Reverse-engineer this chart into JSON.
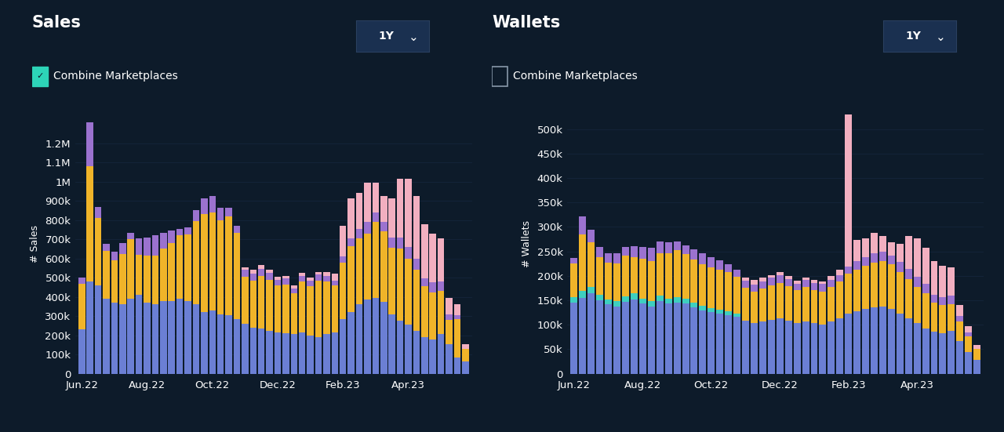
{
  "bg_color": "#0d1b2a",
  "grid_color": "#162840",
  "text_color": "#ffffff",
  "bar_colors": {
    "blue": "#6b7fd4",
    "teal": "#3ecfbf",
    "yellow": "#f0b429",
    "purple": "#9b72cf",
    "pink": "#f2afc0"
  },
  "sales_title": "Sales",
  "wallets_title": "Wallets",
  "sales_ylabel": "# Sales",
  "wallets_ylabel": "# Wallets",
  "combine_label": "Combine Marketplaces",
  "period_label": "1Y",
  "x_labels": [
    "Jun.22",
    "Aug.22",
    "Oct.22",
    "Dec.22",
    "Feb.23",
    "Apr.23"
  ],
  "sales_ylim": [
    0,
    1350000
  ],
  "wallets_ylim": [
    0,
    530000
  ],
  "sales_yticks": [
    0,
    100000,
    200000,
    300000,
    400000,
    500000,
    600000,
    700000,
    800000,
    900000,
    1000000,
    1100000,
    1200000
  ],
  "wallets_yticks": [
    0,
    50000,
    100000,
    150000,
    200000,
    250000,
    300000,
    350000,
    400000,
    450000,
    500000
  ],
  "n_bars": 48,
  "sales_blue": [
    230000,
    480000,
    460000,
    390000,
    370000,
    360000,
    390000,
    410000,
    370000,
    360000,
    380000,
    380000,
    390000,
    380000,
    360000,
    320000,
    330000,
    310000,
    305000,
    285000,
    260000,
    240000,
    235000,
    225000,
    215000,
    210000,
    205000,
    215000,
    200000,
    190000,
    205000,
    215000,
    285000,
    320000,
    360000,
    385000,
    395000,
    375000,
    310000,
    275000,
    255000,
    225000,
    190000,
    180000,
    205000,
    155000,
    85000,
    65000
  ],
  "sales_teal": [
    0,
    0,
    0,
    0,
    0,
    0,
    0,
    0,
    0,
    0,
    0,
    0,
    0,
    0,
    0,
    0,
    0,
    0,
    0,
    0,
    0,
    0,
    0,
    0,
    0,
    0,
    0,
    0,
    0,
    0,
    0,
    0,
    0,
    0,
    0,
    0,
    0,
    0,
    0,
    0,
    0,
    0,
    0,
    0,
    0,
    0,
    0,
    0
  ],
  "sales_yellow": [
    240000,
    600000,
    350000,
    250000,
    220000,
    265000,
    310000,
    210000,
    245000,
    255000,
    270000,
    300000,
    330000,
    345000,
    435000,
    510000,
    510000,
    490000,
    515000,
    450000,
    245000,
    245000,
    275000,
    265000,
    245000,
    255000,
    215000,
    265000,
    255000,
    295000,
    275000,
    245000,
    295000,
    345000,
    345000,
    345000,
    395000,
    365000,
    345000,
    375000,
    345000,
    315000,
    265000,
    245000,
    225000,
    125000,
    200000,
    65000
  ],
  "sales_purple": [
    30000,
    230000,
    60000,
    35000,
    45000,
    55000,
    35000,
    85000,
    95000,
    105000,
    85000,
    65000,
    35000,
    35000,
    55000,
    85000,
    85000,
    65000,
    45000,
    35000,
    35000,
    35000,
    35000,
    35000,
    30000,
    30000,
    25000,
    30000,
    30000,
    30000,
    30000,
    25000,
    30000,
    40000,
    50000,
    60000,
    50000,
    50000,
    55000,
    60000,
    60000,
    60000,
    40000,
    50000,
    50000,
    30000,
    20000,
    0
  ],
  "sales_pink": [
    0,
    0,
    0,
    0,
    0,
    0,
    0,
    0,
    0,
    0,
    0,
    0,
    0,
    0,
    0,
    0,
    0,
    0,
    0,
    0,
    15000,
    20000,
    20000,
    15000,
    15000,
    15000,
    15000,
    15000,
    15000,
    15000,
    20000,
    35000,
    160000,
    210000,
    185000,
    205000,
    155000,
    135000,
    205000,
    305000,
    355000,
    325000,
    285000,
    255000,
    225000,
    85000,
    55000,
    25000
  ],
  "wallets_blue": [
    145000,
    155000,
    165000,
    150000,
    142000,
    138000,
    147000,
    152000,
    143000,
    138000,
    148000,
    143000,
    146000,
    143000,
    136000,
    130000,
    126000,
    123000,
    120000,
    116000,
    108000,
    103000,
    106000,
    110000,
    113000,
    108000,
    103000,
    106000,
    103000,
    100000,
    106000,
    113000,
    123000,
    128000,
    133000,
    136000,
    138000,
    133000,
    123000,
    113000,
    103000,
    93000,
    86000,
    83000,
    88000,
    66000,
    44000,
    28000
  ],
  "wallets_teal": [
    12000,
    14000,
    12000,
    11000,
    10000,
    10000,
    11000,
    12000,
    11000,
    10000,
    11000,
    10000,
    11000,
    10000,
    10000,
    9000,
    8000,
    8000,
    8000,
    7000,
    0,
    0,
    0,
    0,
    0,
    0,
    0,
    0,
    0,
    0,
    0,
    0,
    0,
    0,
    0,
    0,
    0,
    0,
    0,
    0,
    0,
    0,
    0,
    0,
    0,
    0,
    0,
    0
  ],
  "wallets_yellow": [
    68000,
    115000,
    92000,
    78000,
    75000,
    78000,
    83000,
    75000,
    81000,
    83000,
    88000,
    93000,
    95000,
    91000,
    88000,
    85000,
    83000,
    81000,
    79000,
    75000,
    68000,
    65000,
    68000,
    71000,
    73000,
    71000,
    68000,
    71000,
    68000,
    68000,
    71000,
    75000,
    81000,
    85000,
    88000,
    91000,
    93000,
    91000,
    85000,
    81000,
    75000,
    71000,
    60000,
    57000,
    54000,
    40000,
    32000,
    22000
  ],
  "wallets_purple": [
    12000,
    38000,
    25000,
    20000,
    20000,
    20000,
    18000,
    22000,
    24000,
    27000,
    24000,
    22000,
    18000,
    18000,
    20000,
    22000,
    22000,
    20000,
    17000,
    15000,
    14000,
    14000,
    14000,
    15000,
    15000,
    14000,
    13000,
    14000,
    14000,
    15000,
    14000,
    13000,
    15000,
    17000,
    18000,
    20000,
    18000,
    18000,
    20000,
    20000,
    20000,
    20000,
    16000,
    17000,
    17000,
    12000,
    8000,
    0
  ],
  "wallets_pink": [
    0,
    0,
    0,
    0,
    0,
    0,
    0,
    0,
    0,
    0,
    0,
    0,
    0,
    0,
    0,
    0,
    0,
    0,
    0,
    0,
    6000,
    9000,
    9000,
    6000,
    6000,
    6000,
    6000,
    6000,
    6000,
    6000,
    9000,
    11000,
    340000,
    43000,
    38000,
    41000,
    33000,
    27000,
    38000,
    68000,
    78000,
    73000,
    68000,
    63000,
    58000,
    22000,
    13000,
    9000
  ]
}
